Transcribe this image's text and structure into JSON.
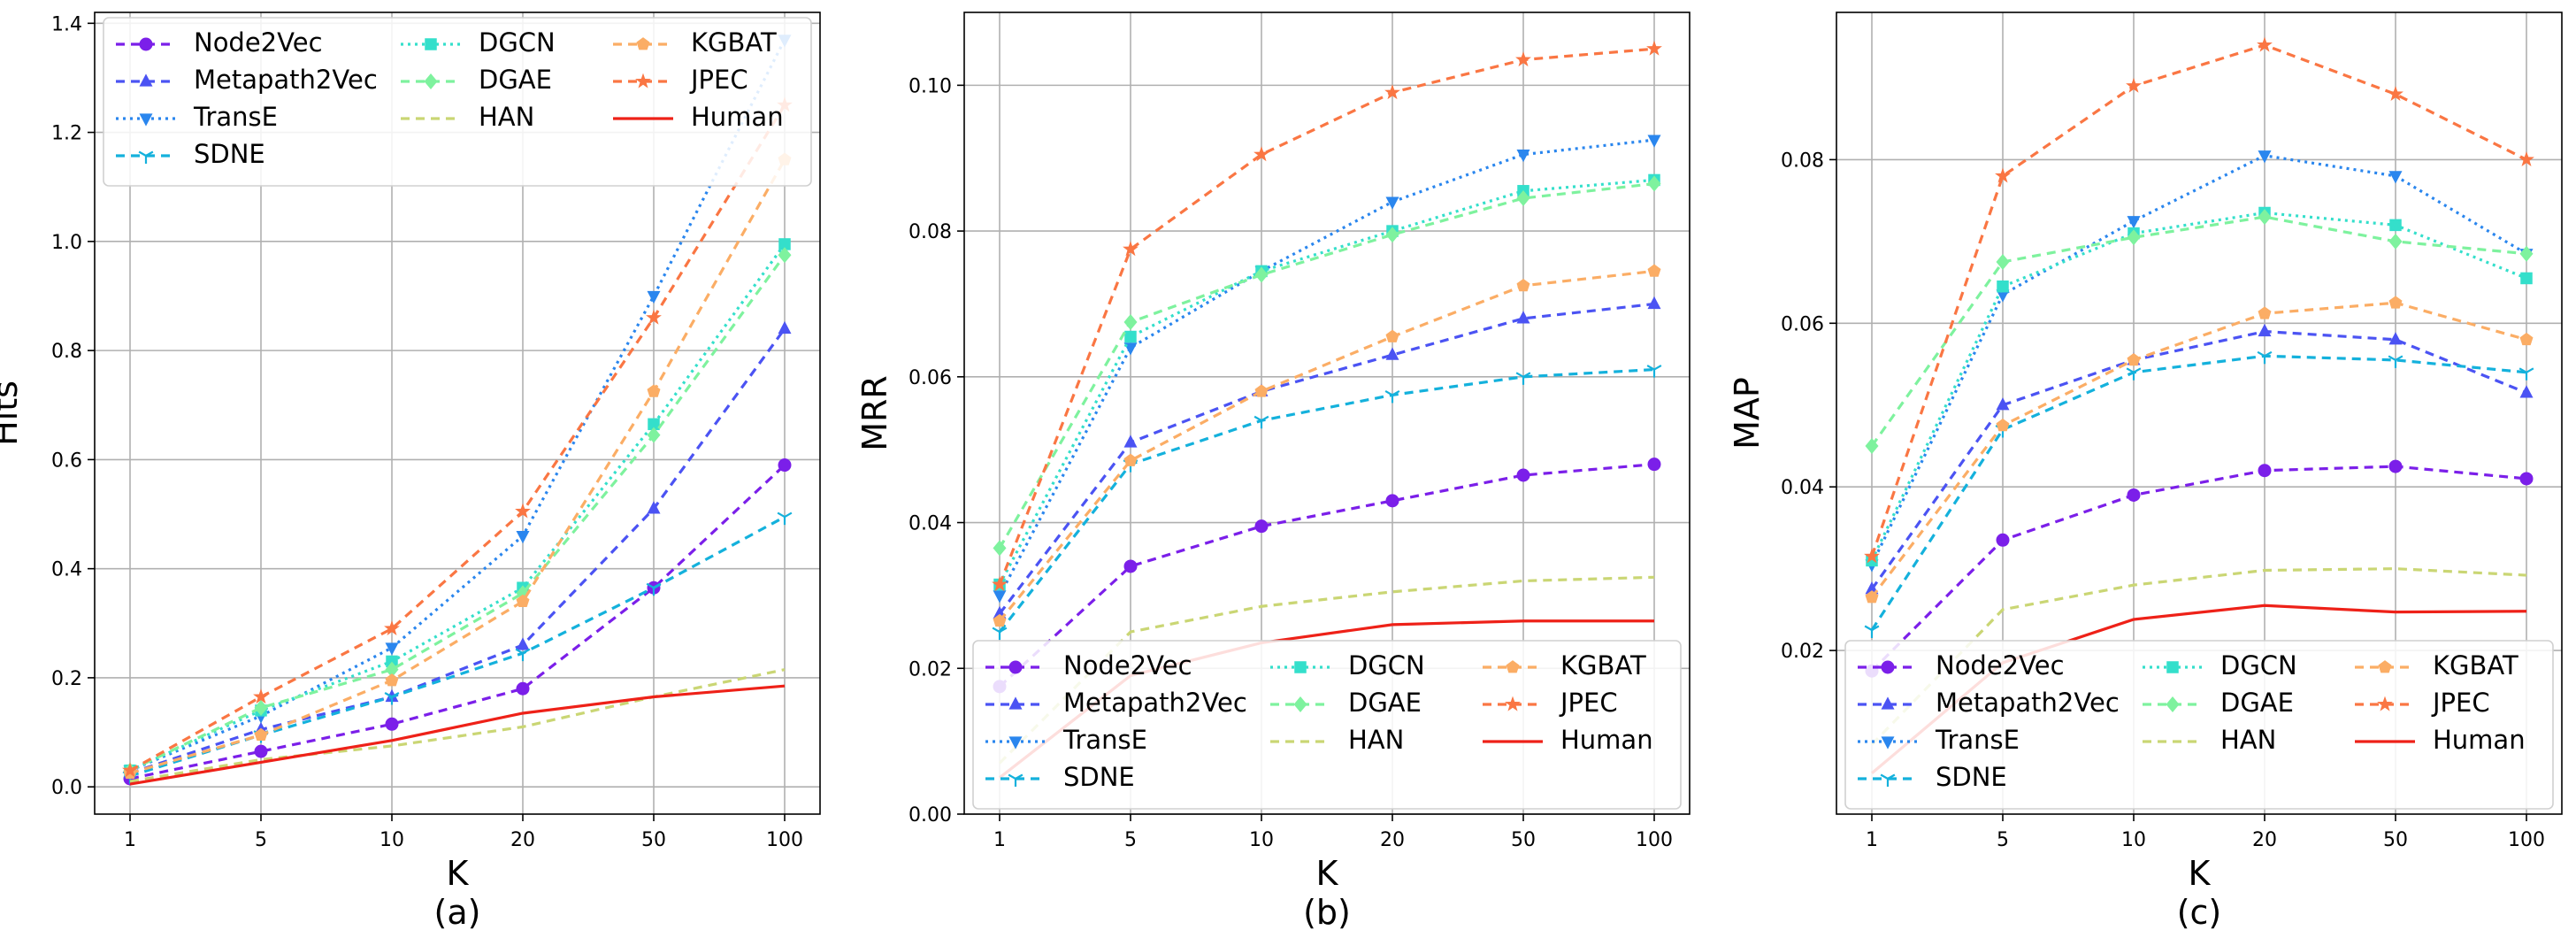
{
  "chart_data": [
    {
      "type": "line",
      "panel_label": "(a)",
      "xlabel": "K",
      "ylabel": "Hits",
      "categories": [
        "1",
        "5",
        "10",
        "20",
        "50",
        "100"
      ],
      "yticks": [
        "0.0",
        "0.2",
        "0.4",
        "0.6",
        "0.8",
        "1.0",
        "1.2",
        "1.4"
      ],
      "ylim": [
        -0.05,
        1.42
      ],
      "grid": true,
      "legend": "upper-left",
      "series": [
        {
          "name": "Node2Vec",
          "values": [
            0.015,
            0.065,
            0.115,
            0.18,
            0.365,
            0.59
          ]
        },
        {
          "name": "Metapath2Vec",
          "values": [
            0.025,
            0.105,
            0.165,
            0.26,
            0.51,
            0.84
          ]
        },
        {
          "name": "TransE",
          "values": [
            0.03,
            0.13,
            0.255,
            0.46,
            0.9,
            1.37
          ]
        },
        {
          "name": "SDNE",
          "values": [
            0.02,
            0.095,
            0.165,
            0.245,
            0.365,
            0.495
          ]
        },
        {
          "name": "DGCN",
          "values": [
            0.03,
            0.14,
            0.23,
            0.365,
            0.665,
            0.995
          ]
        },
        {
          "name": "DGAE",
          "values": [
            0.03,
            0.145,
            0.215,
            0.355,
            0.645,
            0.975
          ]
        },
        {
          "name": "HAN",
          "values": [
            0.01,
            0.05,
            0.075,
            0.11,
            0.165,
            0.215
          ]
        },
        {
          "name": "KGBAT",
          "values": [
            0.025,
            0.095,
            0.195,
            0.34,
            0.725,
            1.15
          ]
        },
        {
          "name": "JPEC",
          "values": [
            0.03,
            0.165,
            0.29,
            0.505,
            0.86,
            1.25
          ]
        },
        {
          "name": "Human",
          "values": [
            0.005,
            0.045,
            0.085,
            0.135,
            0.165,
            0.185
          ]
        }
      ]
    },
    {
      "type": "line",
      "panel_label": "(b)",
      "xlabel": "K",
      "ylabel": "MRR",
      "categories": [
        "1",
        "5",
        "10",
        "20",
        "50",
        "100"
      ],
      "yticks": [
        "0.00",
        "0.02",
        "0.04",
        "0.06",
        "0.08",
        "0.10"
      ],
      "ylim": [
        0,
        0.11
      ],
      "grid": true,
      "legend": "lower-center",
      "series": [
        {
          "name": "Node2Vec",
          "values": [
            0.0175,
            0.034,
            0.0395,
            0.043,
            0.0465,
            0.048
          ]
        },
        {
          "name": "Metapath2Vec",
          "values": [
            0.0275,
            0.051,
            0.058,
            0.063,
            0.068,
            0.07
          ]
        },
        {
          "name": "TransE",
          "values": [
            0.03,
            0.064,
            0.0745,
            0.084,
            0.0905,
            0.0925
          ]
        },
        {
          "name": "SDNE",
          "values": [
            0.025,
            0.048,
            0.054,
            0.0575,
            0.06,
            0.061
          ]
        },
        {
          "name": "DGCN",
          "values": [
            0.0315,
            0.0655,
            0.0745,
            0.08,
            0.0855,
            0.087
          ]
        },
        {
          "name": "DGAE",
          "values": [
            0.0365,
            0.0675,
            0.074,
            0.0795,
            0.0845,
            0.0865
          ]
        },
        {
          "name": "HAN",
          "values": [
            0.007,
            0.025,
            0.0285,
            0.0305,
            0.032,
            0.0325
          ]
        },
        {
          "name": "KGBAT",
          "values": [
            0.0265,
            0.0485,
            0.058,
            0.0655,
            0.0725,
            0.0745
          ]
        },
        {
          "name": "JPEC",
          "values": [
            0.0315,
            0.0775,
            0.0905,
            0.099,
            0.1035,
            0.105
          ]
        },
        {
          "name": "Human",
          "values": [
            0.005,
            0.019,
            0.0235,
            0.026,
            0.0265,
            0.0265
          ]
        }
      ]
    },
    {
      "type": "line",
      "panel_label": "(c)",
      "xlabel": "K",
      "ylabel": "MAP",
      "categories": [
        "1",
        "5",
        "10",
        "20",
        "50",
        "100"
      ],
      "yticks": [
        "0.02",
        "0.04",
        "0.06",
        "0.08"
      ],
      "ylim": [
        0.0,
        0.098
      ],
      "grid": true,
      "legend": "lower-center",
      "series": [
        {
          "name": "Node2Vec",
          "values": [
            0.0175,
            0.0335,
            0.039,
            0.042,
            0.0425,
            0.041
          ]
        },
        {
          "name": "Metapath2Vec",
          "values": [
            0.0275,
            0.05,
            0.0555,
            0.059,
            0.058,
            0.0515
          ]
        },
        {
          "name": "TransE",
          "values": [
            0.0305,
            0.0635,
            0.0725,
            0.0805,
            0.078,
            0.0685
          ]
        },
        {
          "name": "SDNE",
          "values": [
            0.0225,
            0.047,
            0.054,
            0.056,
            0.0555,
            0.054
          ]
        },
        {
          "name": "DGCN",
          "values": [
            0.031,
            0.0645,
            0.071,
            0.0735,
            0.072,
            0.0655
          ]
        },
        {
          "name": "DGAE",
          "values": [
            0.045,
            0.0675,
            0.0705,
            0.073,
            0.07,
            0.0685
          ]
        },
        {
          "name": "HAN",
          "values": [
            0.0085,
            0.025,
            0.028,
            0.0298,
            0.03,
            0.0292
          ]
        },
        {
          "name": "KGBAT",
          "values": [
            0.0265,
            0.0475,
            0.0555,
            0.0612,
            0.0625,
            0.058
          ]
        },
        {
          "name": "JPEC",
          "values": [
            0.0315,
            0.078,
            0.089,
            0.094,
            0.088,
            0.08
          ]
        },
        {
          "name": "Human",
          "values": [
            0.005,
            0.0185,
            0.0238,
            0.0255,
            0.0247,
            0.0248
          ]
        }
      ]
    }
  ],
  "styles": [
    {
      "color": "#7b1fe9",
      "dash": "10,7",
      "marker": "circle"
    },
    {
      "color": "#4b53f3",
      "dash": "10,7",
      "marker": "triangle-up"
    },
    {
      "color": "#2a86ee",
      "dash": "3,5",
      "marker": "triangle-down"
    },
    {
      "color": "#14b1dc",
      "dash": "10,7",
      "marker": "tri-down"
    },
    {
      "color": "#34dfcb",
      "dash": "3,5",
      "marker": "square"
    },
    {
      "color": "#7ef29e",
      "dash": "10,7",
      "marker": "diamond"
    },
    {
      "color": "#cad674",
      "dash": "10,7",
      "marker": "none"
    },
    {
      "color": "#fbad65",
      "dash": "10,7",
      "marker": "pentagon"
    },
    {
      "color": "#fa7643",
      "dash": "10,7",
      "marker": "star"
    },
    {
      "color": "#ee2118",
      "dash": "",
      "marker": "none"
    }
  ]
}
